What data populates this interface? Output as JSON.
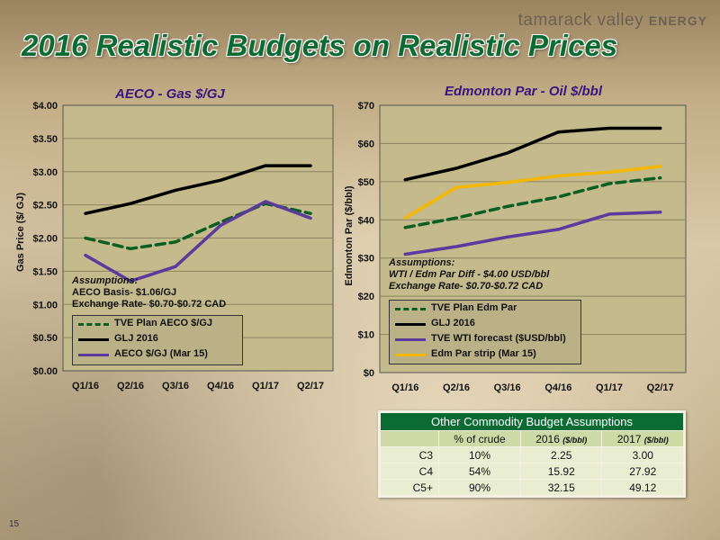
{
  "brand": {
    "name": "tamarack valley",
    "suffix": "ENERGY"
  },
  "slide_title": "2016 Realistic Budgets on Realistic Prices",
  "page_number": "15",
  "chart_data": [
    {
      "type": "line",
      "title": "AECO - Gas $/GJ",
      "ylabel": "Gas Price ($/ GJ)",
      "xlabel": "",
      "categories": [
        "Q1/16",
        "Q2/16",
        "Q3/16",
        "Q4/16",
        "Q1/17",
        "Q2/17"
      ],
      "ylim": [
        0,
        4
      ],
      "yticks": [
        "$0.00",
        "$0.50",
        "$1.00",
        "$1.50",
        "$2.00",
        "$2.50",
        "$3.00",
        "$3.50",
        "$4.00"
      ],
      "grid": true,
      "series": [
        {
          "name": "TVE Plan AECO $/GJ",
          "values": [
            2.0,
            1.84,
            1.94,
            2.24,
            2.52,
            2.37
          ],
          "color": "#0b5e22",
          "dash": true
        },
        {
          "name": "GLJ 2016",
          "values": [
            2.37,
            2.52,
            2.72,
            2.87,
            3.09,
            3.09
          ],
          "color": "#000000",
          "dash": false
        },
        {
          "name": "AECO $/GJ (Mar 15)",
          "values": [
            1.74,
            1.35,
            1.57,
            2.19,
            2.55,
            2.3
          ],
          "color": "#5b3a9e",
          "dash": false
        }
      ],
      "assumptions": {
        "heading": "Assumptions:",
        "lines": [
          "AECO Basis- $1.06/GJ",
          "Exchange Rate- $0.70-$0.72 CAD"
        ]
      }
    },
    {
      "type": "line",
      "title": "Edmonton Par - Oil $/bbl",
      "ylabel": "Edmonton Par ($/bbl)",
      "xlabel": "",
      "categories": [
        "Q1/16",
        "Q2/16",
        "Q3/16",
        "Q4/16",
        "Q1/17",
        "Q2/17"
      ],
      "ylim": [
        0,
        70
      ],
      "yticks": [
        "$0",
        "$10",
        "$20",
        "$30",
        "$40",
        "$50",
        "$60",
        "$70"
      ],
      "grid": true,
      "series": [
        {
          "name": "TVE Plan Edm Par",
          "values": [
            38,
            40.5,
            43.5,
            46,
            49.5,
            51
          ],
          "color": "#0b5e22",
          "dash": true
        },
        {
          "name": "GLJ 2016",
          "values": [
            50.5,
            53.5,
            57.5,
            63,
            64,
            64
          ],
          "color": "#000000",
          "dash": false
        },
        {
          "name": "TVE WTI forecast ($USD/bbl)",
          "values": [
            31,
            33,
            35.5,
            37.5,
            41.5,
            42
          ],
          "color": "#5b3a9e",
          "dash": false
        },
        {
          "name": "Edm Par strip (Mar 15)",
          "values": [
            40.5,
            48.5,
            49.8,
            51.5,
            52.5,
            54
          ],
          "color": "#f5b800",
          "dash": false
        }
      ],
      "assumptions": {
        "heading": "Assumptions:",
        "lines": [
          "WTI / Edm Par Diff - $4.00 USD/bbl",
          "Exchange Rate- $0.70-$0.72 CAD"
        ]
      }
    },
    {
      "type": "table",
      "title": "Other Commodity Budget Assumptions",
      "columns": [
        "",
        "% of crude",
        "2016",
        "2017"
      ],
      "column_units": [
        "",
        "",
        "($/bbl)",
        "($/bbl)"
      ],
      "rows": [
        [
          "C3",
          "10%",
          "2.25",
          "3.00"
        ],
        [
          "C4",
          "54%",
          "15.92",
          "27.92"
        ],
        [
          "C5+",
          "90%",
          "32.15",
          "49.12"
        ]
      ]
    }
  ]
}
